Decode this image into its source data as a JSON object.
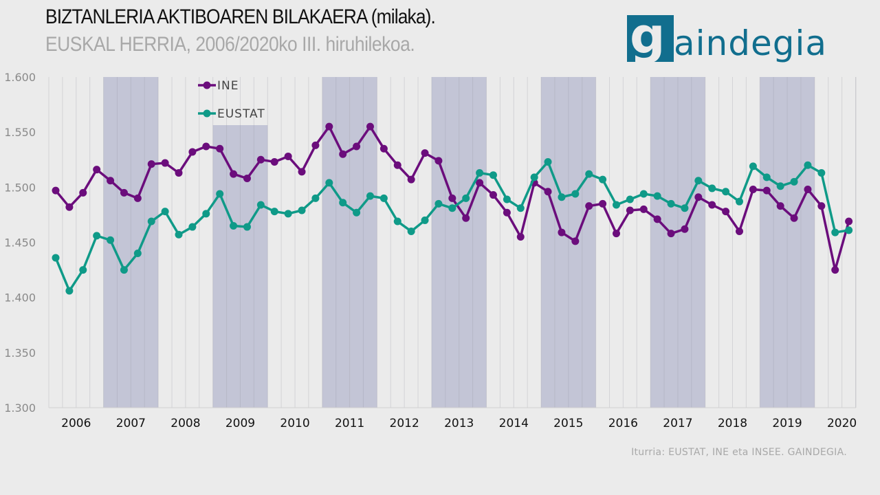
{
  "header": {
    "title": "BIZTANLERIA AKTIBOAREN BILAKAERA (milaka).",
    "subtitle": "EUSKAL HERRIA, 2006/2020ko III. hiruhilekoa."
  },
  "logo": {
    "letter": "g",
    "text": "aindegia",
    "color": "#116e8e"
  },
  "source": "Iturria: EUSTAT, INE eta INSEE. GAINDEGIA.",
  "chart_data": {
    "type": "line",
    "title": "BIZTANLERIA AKTIBOAREN BILAKAERA (milaka).",
    "subtitle": "EUSKAL HERRIA, 2006/2020ko III. hiruhilekoa.",
    "xlabel": "",
    "ylabel": "",
    "ylim": [
      1300,
      1600
    ],
    "yticks": [
      1300,
      1350,
      1400,
      1450,
      1500,
      1550,
      1600
    ],
    "ytick_labels": [
      "1.300",
      "1.350",
      "1.400",
      "1.450",
      "1.500",
      "1.550",
      "1.600"
    ],
    "years": [
      "2006",
      "2007",
      "2008",
      "2009",
      "2010",
      "2011",
      "2012",
      "2013",
      "2014",
      "2015",
      "2016",
      "2017",
      "2018",
      "2019",
      "2020"
    ],
    "shaded_years": [
      "2007",
      "2009",
      "2011",
      "2013",
      "2015",
      "2017",
      "2019"
    ],
    "quarters_per_year": 4,
    "n_points": 59,
    "grid": true,
    "legend": "top-left",
    "colors": {
      "INE": "#6b0d7c",
      "EUSTAT": "#0f9a88",
      "band": "#c3c5d6"
    },
    "series": [
      {
        "name": "INE",
        "values": [
          1497,
          1482,
          1495,
          1516,
          1506,
          1495,
          1490,
          1521,
          1522,
          1513,
          1532,
          1537,
          1535,
          1512,
          1508,
          1525,
          1523,
          1528,
          1514,
          1538,
          1555,
          1530,
          1537,
          1555,
          1535,
          1520,
          1507,
          1531,
          1524,
          1490,
          1472,
          1504,
          1493,
          1477,
          1455,
          1504,
          1496,
          1459,
          1451,
          1483,
          1485,
          1458,
          1479,
          1480,
          1471,
          1458,
          1462,
          1491,
          1484,
          1478,
          1460,
          1498,
          1497,
          1483,
          1472,
          1498,
          1483,
          1425,
          1469
        ]
      },
      {
        "name": "EUSTAT",
        "values": [
          1436,
          1406,
          1425,
          1456,
          1452,
          1425,
          1440,
          1469,
          1478,
          1457,
          1464,
          1476,
          1494,
          1465,
          1464,
          1484,
          1478,
          1476,
          1479,
          1490,
          1504,
          1486,
          1477,
          1492,
          1490,
          1469,
          1460,
          1470,
          1485,
          1481,
          1490,
          1513,
          1511,
          1489,
          1481,
          1509,
          1523,
          1491,
          1494,
          1512,
          1507,
          1484,
          1489,
          1494,
          1492,
          1485,
          1481,
          1506,
          1499,
          1496,
          1487,
          1519,
          1509,
          1501,
          1505,
          1520,
          1513,
          1459,
          1461
        ]
      }
    ]
  }
}
